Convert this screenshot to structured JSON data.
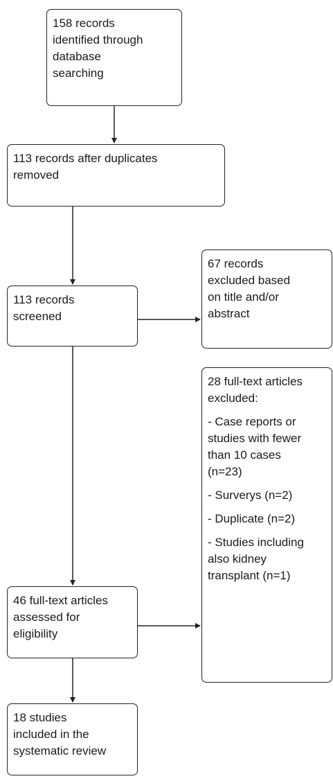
{
  "flow": {
    "identified": "158 records\nidentified through\ndatabase\nsearching",
    "after_duplicates": "113 records after duplicates\nremoved",
    "screened": "113 records\nscreened",
    "excluded_title": "67 records\nexcluded based\non title and/or\nabstract",
    "fulltext_excluded": {
      "heading": "28 full-text articles\nexcluded:",
      "reasons": [
        "- Case reports or\nstudies with fewer\nthan 10 cases\n(n=23)",
        "- Surverys (n=2)",
        "- Duplicate (n=2)",
        "- Studies including\nalso kidney\ntransplant (n=1)"
      ]
    },
    "assessed": "46 full-text articles\nassessed for\neligibility",
    "included": "18 studies\nincluded in the\nsystematic review"
  }
}
